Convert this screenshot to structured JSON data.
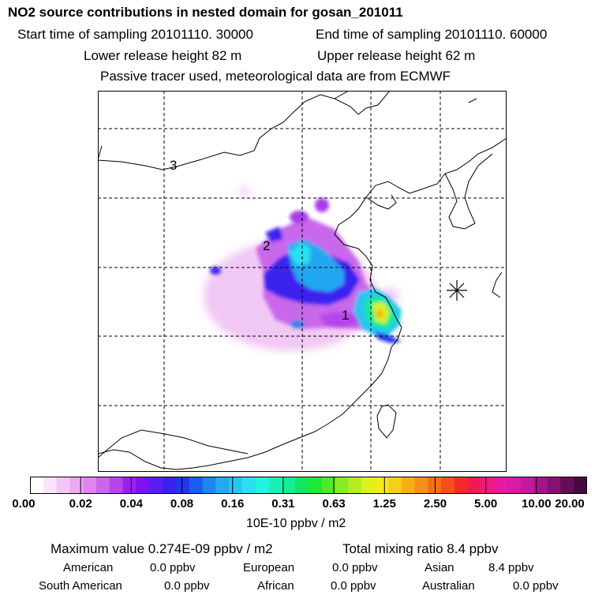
{
  "header": {
    "title": "NO2 source contributions in nested domain for gosan_201011",
    "start_time": "Start time of sampling 20101110. 30000",
    "end_time": "End time of sampling 20101110. 60000",
    "lower_release": "Lower release height   82 m",
    "upper_release": "Upper release height   62 m",
    "tracer_note": "Passive tracer used, meteorological data are from ECMWF"
  },
  "map": {
    "labels": [
      "1",
      "2",
      "3"
    ],
    "receptor_symbol": "star-receptor-marker"
  },
  "colorbar": {
    "tick_labels": [
      "0.00",
      "0.02",
      "0.04",
      "0.08",
      "0.16",
      "0.31",
      "0.63",
      "1.25",
      "2.50",
      "5.00",
      "10.00",
      "20.00"
    ],
    "colors": [
      "#ffffff",
      "#fbe5fb",
      "#f4c6f6",
      "#ecaaf2",
      "#df86ee",
      "#c966ea",
      "#b545ea",
      "#9b1ef0",
      "#7a12f4",
      "#5a1cf2",
      "#3a22ee",
      "#2236ee",
      "#1b5cf0",
      "#1d84f0",
      "#24a8f0",
      "#27c6f0",
      "#2ae0f0",
      "#22f2e0",
      "#18f0b8",
      "#10ee90",
      "#0ce860",
      "#1ee83a",
      "#50e82a",
      "#86ec20",
      "#b4ee1c",
      "#dcf01c",
      "#f4ea1c",
      "#f6cf1a",
      "#f6b016",
      "#f69018",
      "#f66e18",
      "#f64e1c",
      "#f42a2a",
      "#f01a52",
      "#ee1a7c",
      "#e81aa0",
      "#d81aa8",
      "#c31a9c",
      "#a41688",
      "#841270",
      "#640e58",
      "#440a40"
    ],
    "unit": "10E-10 ppbv / m2"
  },
  "summary": {
    "max_value": "Maximum value  0.274E-09 ppbv / m2",
    "total_mixing": "Total mixing ratio        8.4 ppbv",
    "regions": [
      {
        "name": "American",
        "value": "0.0 ppbv"
      },
      {
        "name": "European",
        "value": "0.0 ppbv"
      },
      {
        "name": "Asian",
        "value": "8.4 ppbv"
      },
      {
        "name": "South American",
        "value": "0.0 ppbv"
      },
      {
        "name": "African",
        "value": "0.0 ppbv"
      },
      {
        "name": "Australian",
        "value": "0.0 ppbv"
      }
    ]
  }
}
